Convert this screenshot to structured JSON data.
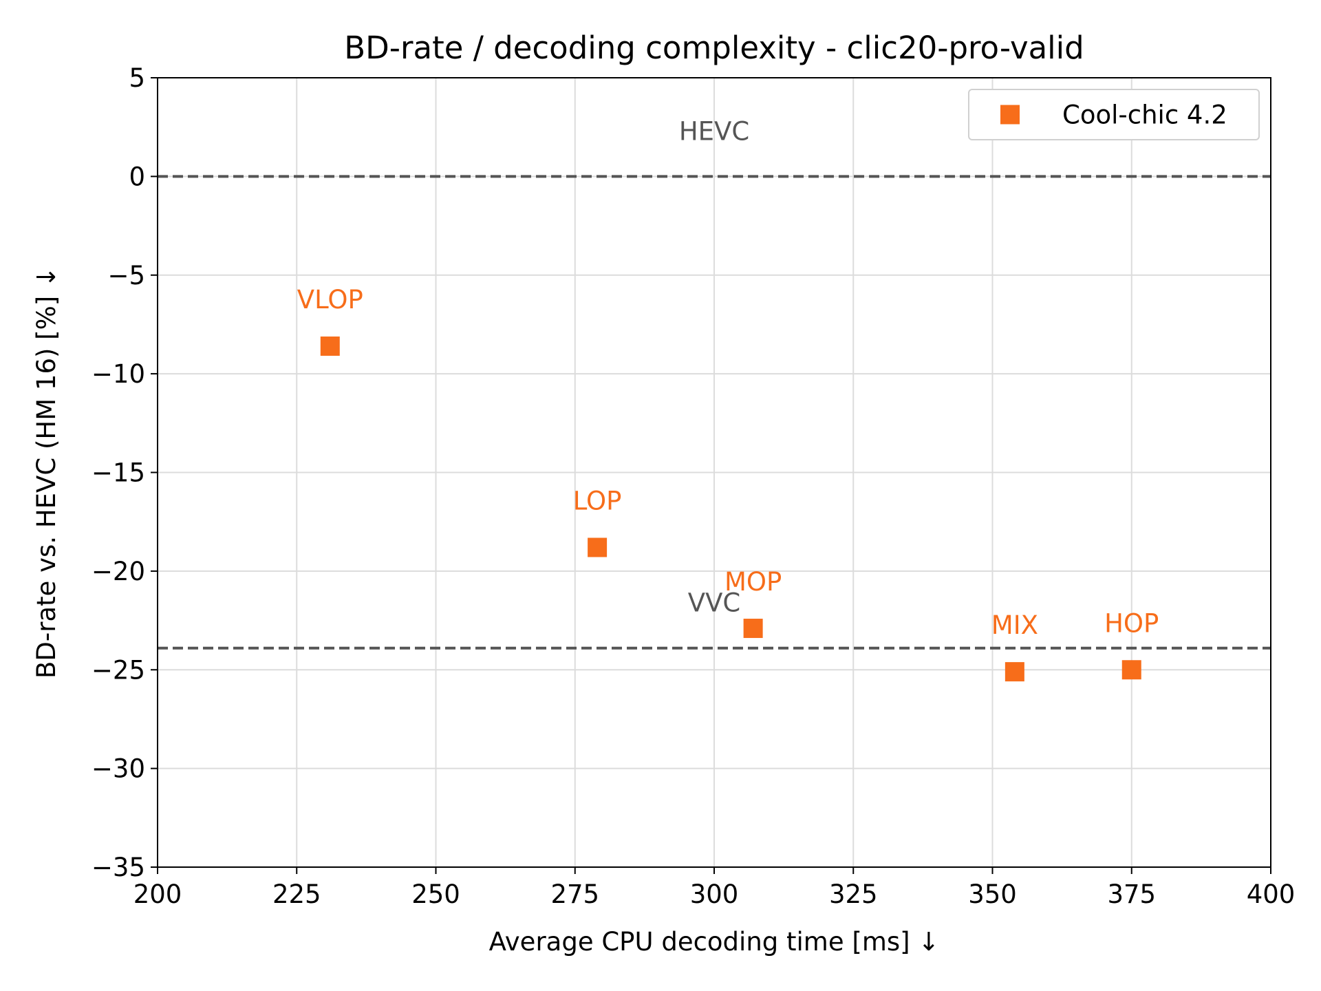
{
  "chart_data": {
    "type": "scatter",
    "title": "BD-rate / decoding complexity - clic20-pro-valid",
    "xlabel": "Average CPU decoding time [ms]  ↓",
    "ylabel": "BD-rate vs. HEVC (HM 16) [%]  ↓",
    "xlim": [
      200,
      400
    ],
    "ylim": [
      -35,
      5
    ],
    "xticks": [
      200,
      225,
      250,
      275,
      300,
      325,
      350,
      375,
      400
    ],
    "yticks": [
      5,
      0,
      -5,
      -10,
      -15,
      -20,
      -25,
      -30,
      -35
    ],
    "xtick_labels": [
      "200",
      "225",
      "250",
      "275",
      "300",
      "325",
      "350",
      "375",
      "400"
    ],
    "ytick_labels": [
      "5",
      "0",
      "−5",
      "−10",
      "−15",
      "−20",
      "−25",
      "−30",
      "−35"
    ],
    "grid": true,
    "legend_position": "top-right",
    "series": [
      {
        "name": "Cool-chic 4.2",
        "color": "#F76D1A",
        "marker": "square",
        "points": [
          {
            "label": "VLOP",
            "x": 231,
            "y": -8.6
          },
          {
            "label": "LOP",
            "x": 279,
            "y": -18.8
          },
          {
            "label": "MOP",
            "x": 307,
            "y": -22.9
          },
          {
            "label": "MIX",
            "x": 354,
            "y": -25.1
          },
          {
            "label": "HOP",
            "x": 375,
            "y": -25.0
          }
        ]
      }
    ],
    "reference_lines": [
      {
        "label": "HEVC",
        "y": 0,
        "label_x": 300,
        "color": "#555555",
        "style": "dashed"
      },
      {
        "label": "VVC",
        "y": -23.9,
        "label_x": 300,
        "color": "#555555",
        "style": "dashed"
      }
    ]
  }
}
